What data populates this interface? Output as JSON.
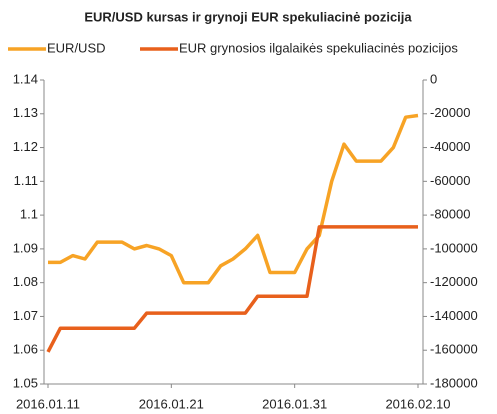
{
  "chart_data": {
    "type": "line",
    "title": "EUR/USD kursas ir grynoji EUR spekuliacinė pozicija",
    "categories": [
      "2016.01.11",
      null,
      null,
      null,
      null,
      null,
      null,
      null,
      null,
      null,
      "2016.01.21",
      null,
      null,
      null,
      null,
      null,
      null,
      null,
      null,
      null,
      "2016.01.31",
      null,
      null,
      null,
      null,
      null,
      null,
      null,
      null,
      null,
      "2016.02.10"
    ],
    "series": [
      {
        "name": "EUR/USD",
        "color": "#f7a325",
        "values": [
          1.086,
          1.086,
          1.088,
          1.087,
          1.092,
          1.092,
          1.092,
          1.09,
          1.091,
          1.09,
          1.088,
          1.08,
          1.08,
          1.08,
          1.085,
          1.087,
          1.09,
          1.094,
          1.083,
          1.083,
          1.083,
          1.09,
          1.094,
          1.11,
          1.121,
          1.116,
          1.116,
          1.116,
          1.12,
          1.129,
          1.1295
        ]
      },
      {
        "name": "EUR grynosios ilgalaikės spekuliacinės pozicijos",
        "color": "#e8601c",
        "axis": "y2",
        "values": [
          -161000,
          -147000,
          -147000,
          -147000,
          -147000,
          -147000,
          -147000,
          -147000,
          -138000,
          -138000,
          -138000,
          -138000,
          -138000,
          -138000,
          -138000,
          -138000,
          -138000,
          -128000,
          -128000,
          -128000,
          -128000,
          -128000,
          -87000,
          -87000,
          -87000,
          -87000,
          -87000,
          -87000,
          -87000,
          -87000,
          -87000
        ]
      }
    ],
    "ylim": [
      1.05,
      1.14
    ],
    "yticks": [
      1.05,
      1.06,
      1.07,
      1.08,
      1.09,
      1.1,
      1.11,
      1.12,
      1.13,
      1.14
    ],
    "y2lim": [
      -180000,
      0
    ],
    "y2ticks": [
      -180000,
      -160000,
      -140000,
      -120000,
      -100000,
      -80000,
      -60000,
      -40000,
      -20000,
      0
    ],
    "grid": false,
    "legend": "top"
  }
}
